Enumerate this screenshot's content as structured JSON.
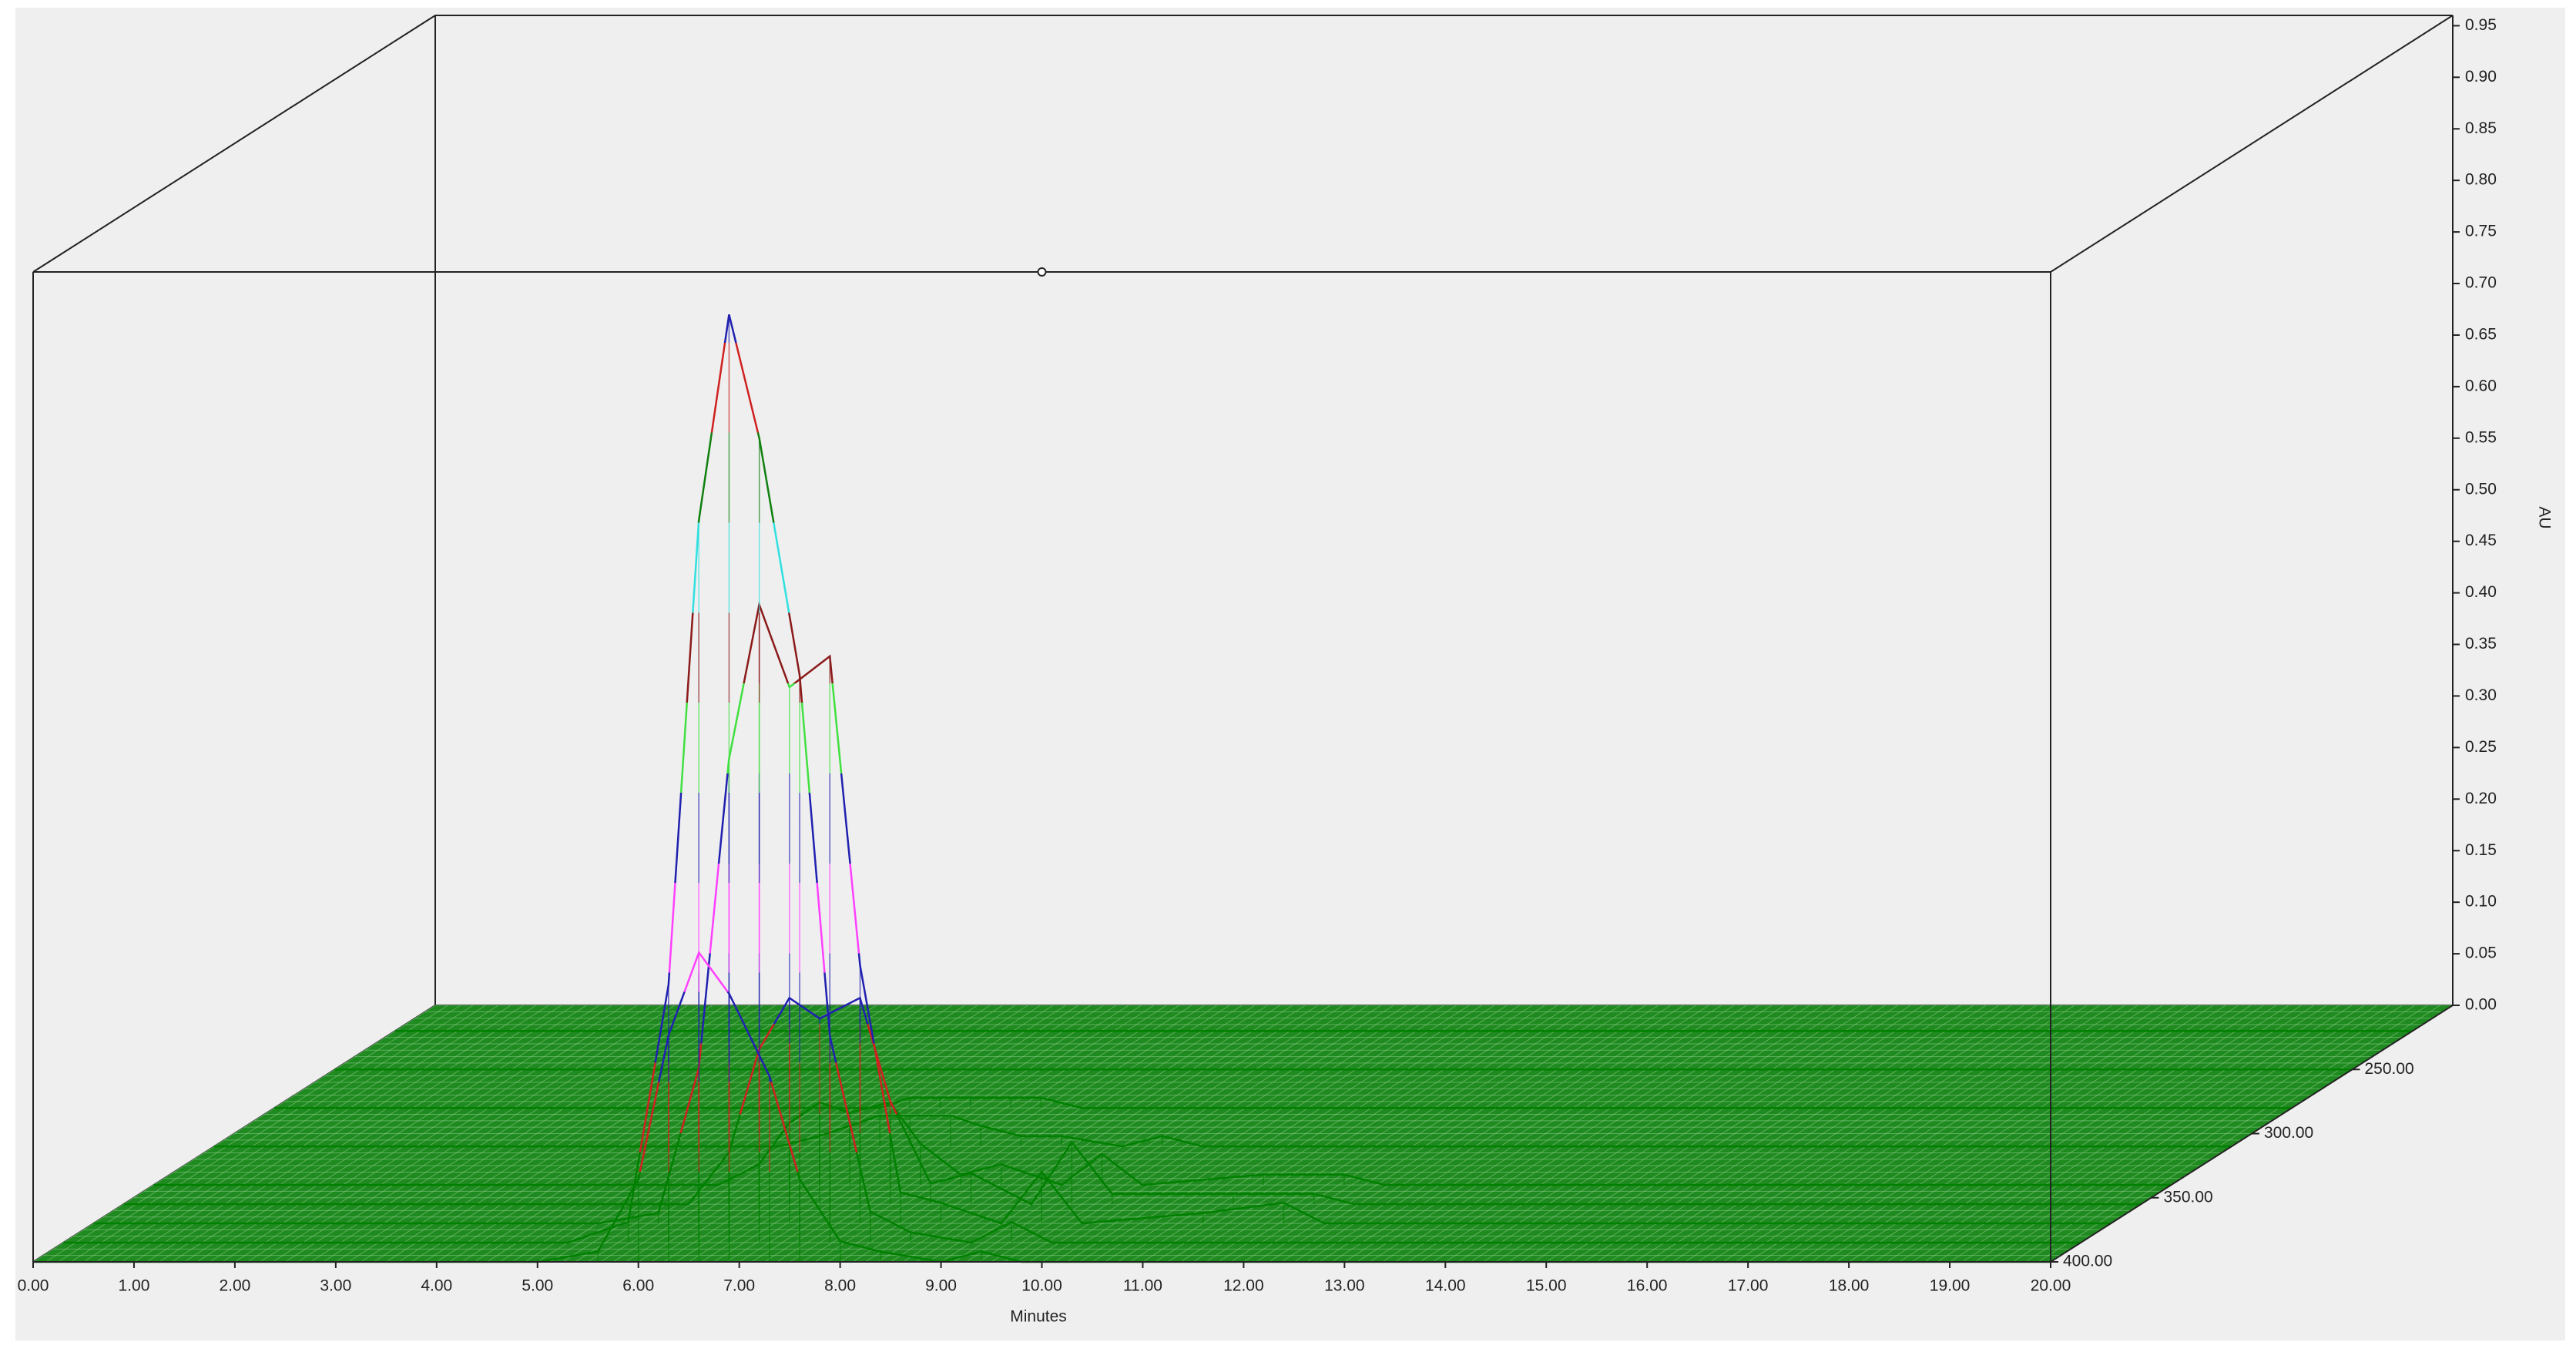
{
  "chart_data": {
    "type": "surface3d",
    "x_label": "Minutes",
    "y_label": "AU",
    "x": [
      0,
      2,
      4,
      5,
      5.6,
      6,
      6.3,
      6.6,
      6.9,
      7.3,
      7.6,
      8,
      8.4,
      9,
      9.4,
      9.8,
      11,
      11.8,
      12.2,
      14,
      17,
      20
    ],
    "z": [
      220,
      250,
      280,
      310,
      340,
      355,
      370,
      385,
      400
    ],
    "values": [
      [
        0,
        0,
        0,
        0,
        0,
        0,
        0,
        0,
        0,
        0,
        0,
        0,
        0,
        0,
        0,
        0,
        0,
        0,
        0,
        0,
        0,
        0
      ],
      [
        0,
        0,
        0,
        0,
        0,
        0,
        0,
        0,
        0,
        0,
        0,
        0,
        0,
        0,
        0,
        0,
        0,
        0,
        0,
        0,
        0,
        0
      ],
      [
        0,
        0,
        0,
        0,
        0,
        0,
        0.01,
        0.01,
        0.01,
        0.01,
        0.01,
        0,
        0,
        0,
        0,
        0,
        0,
        0,
        0,
        0,
        0,
        0
      ],
      [
        0,
        0,
        0,
        0,
        0,
        0.01,
        0.02,
        0.03,
        0.03,
        0.03,
        0.02,
        0.01,
        0.01,
        0,
        0.01,
        0,
        0,
        0,
        0,
        0,
        0,
        0
      ],
      [
        0,
        0,
        0,
        0,
        0,
        0.02,
        0.06,
        0.08,
        0.07,
        0.08,
        0.04,
        0.01,
        0.02,
        0,
        0.03,
        0,
        0.01,
        0.01,
        0,
        0,
        0,
        0
      ],
      [
        0,
        0,
        0,
        0,
        0,
        0.05,
        0.15,
        0.2,
        0.18,
        0.2,
        0.1,
        0.02,
        0.03,
        0,
        0.06,
        0.01,
        0.01,
        0.01,
        0,
        0,
        0,
        0
      ],
      [
        0,
        0,
        0,
        0,
        0.01,
        0.15,
        0.45,
        0.6,
        0.52,
        0.55,
        0.25,
        0.03,
        0.02,
        0,
        0.05,
        0,
        0.01,
        0.02,
        0,
        0,
        0,
        0
      ],
      [
        0,
        0,
        0,
        0,
        0.02,
        0.25,
        0.7,
        0.9,
        0.78,
        0.55,
        0.2,
        0.03,
        0.01,
        0,
        0.02,
        0,
        0,
        0,
        0,
        0,
        0,
        0
      ],
      [
        0,
        0,
        0,
        0,
        0.01,
        0.08,
        0.22,
        0.3,
        0.26,
        0.18,
        0.08,
        0.02,
        0.01,
        0,
        0.01,
        0,
        0,
        0,
        0,
        0,
        0,
        0
      ]
    ],
    "xlim": [
      0,
      20
    ],
    "xticks": [
      {
        "value": 0,
        "label": "0.00"
      },
      {
        "value": 1,
        "label": "1.00"
      },
      {
        "value": 2,
        "label": "2.00"
      },
      {
        "value": 3,
        "label": "3.00"
      },
      {
        "value": 4,
        "label": "4.00"
      },
      {
        "value": 5,
        "label": "5.00"
      },
      {
        "value": 6,
        "label": "6.00"
      },
      {
        "value": 7,
        "label": "7.00"
      },
      {
        "value": 8,
        "label": "8.00"
      },
      {
        "value": 9,
        "label": "9.00"
      },
      {
        "value": 10,
        "label": "10.00"
      },
      {
        "value": 11,
        "label": "11.00"
      },
      {
        "value": 12,
        "label": "12.00"
      },
      {
        "value": 13,
        "label": "13.00"
      },
      {
        "value": 14,
        "label": "14.00"
      },
      {
        "value": 15,
        "label": "15.00"
      },
      {
        "value": 16,
        "label": "16.00"
      },
      {
        "value": 17,
        "label": "17.00"
      },
      {
        "value": 18,
        "label": "18.00"
      },
      {
        "value": 19,
        "label": "19.00"
      },
      {
        "value": 20,
        "label": "20.00"
      }
    ],
    "ylim": [
      0,
      0.96
    ],
    "yticks": [
      {
        "value": 0,
        "label": "0.00"
      },
      0.05,
      {
        "value": 0.1,
        "label": "0.10"
      },
      0.15,
      {
        "value": 0.2,
        "label": "0.20"
      },
      0.25,
      {
        "value": 0.3,
        "label": "0.30"
      },
      0.35,
      {
        "value": 0.4,
        "label": "0.40"
      },
      0.45,
      {
        "value": 0.5,
        "label": "0.50"
      },
      0.55,
      {
        "value": 0.6,
        "label": "0.60"
      },
      0.65,
      {
        "value": 0.7,
        "label": "0.70"
      },
      0.75,
      {
        "value": 0.8,
        "label": "0.80"
      },
      0.85,
      {
        "value": 0.9,
        "label": "0.90"
      },
      0.95
    ],
    "zlim": [
      200,
      400
    ],
    "zticks": [
      {
        "value": 250,
        "label": "250.00"
      },
      {
        "value": 300,
        "label": "300.00"
      },
      {
        "value": 350,
        "label": "350.00"
      },
      {
        "value": 400,
        "label": "400.00"
      }
    ],
    "floor_color": "#1f8a1f",
    "colormap": [
      "#008000",
      "#d02020",
      "#2020b0",
      "#ff40ff",
      "#2020b0",
      "#40e040",
      "#8b1a1a",
      "#30e0e0",
      "#108010",
      "#d02020",
      "#2020b0"
    ]
  }
}
